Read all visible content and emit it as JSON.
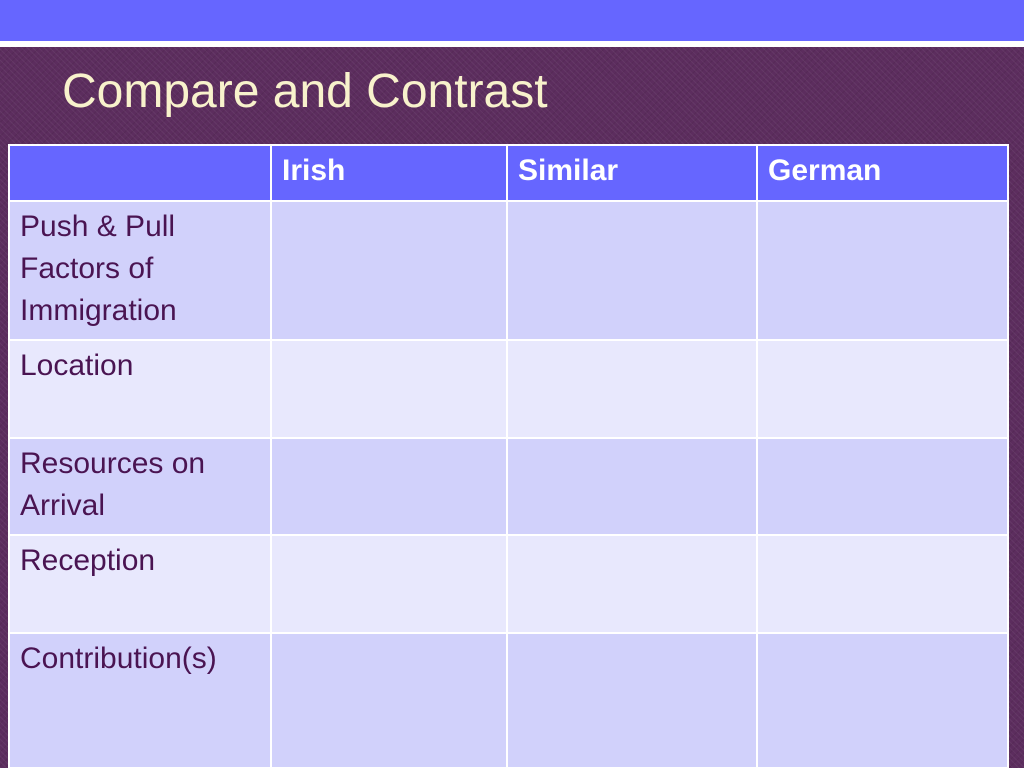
{
  "slide": {
    "title": "Compare and Contrast"
  },
  "table": {
    "headers": [
      "",
      "Irish",
      "Similar",
      "German"
    ],
    "rows": [
      {
        "label": "Push & Pull Factors of Immigration",
        "cells": [
          "",
          "",
          ""
        ]
      },
      {
        "label": "Location",
        "cells": [
          "",
          "",
          ""
        ]
      },
      {
        "label": "Resources on Arrival",
        "cells": [
          "",
          "",
          ""
        ]
      },
      {
        "label": "Reception",
        "cells": [
          "",
          "",
          ""
        ]
      },
      {
        "label": "Contribution(s)",
        "cells": [
          "",
          "",
          ""
        ]
      }
    ]
  },
  "colors": {
    "background": "#5c2d5e",
    "accent_band": "#6666ff",
    "title_text": "#f8f2cc",
    "row_dark": "#d1d1fb",
    "row_light": "#e8e8fd",
    "body_text": "#4a1452"
  }
}
